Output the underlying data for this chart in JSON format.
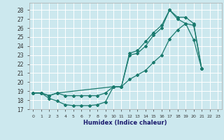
{
  "xlabel": "Humidex (Indice chaleur)",
  "bg_color": "#cce8ee",
  "line_color": "#1a7a6e",
  "grid_color": "#ffffff",
  "xlim": [
    -0.5,
    23.5
  ],
  "ylim": [
    17.0,
    28.8
  ],
  "yticks": [
    17,
    18,
    19,
    20,
    21,
    22,
    23,
    24,
    25,
    26,
    27,
    28
  ],
  "xticks": [
    0,
    1,
    2,
    3,
    4,
    5,
    6,
    7,
    8,
    9,
    10,
    11,
    12,
    13,
    14,
    15,
    16,
    17,
    18,
    19,
    20,
    21,
    22,
    23
  ],
  "line1_x": [
    0,
    1,
    2,
    3,
    10,
    11,
    12,
    13,
    14,
    15,
    16,
    17,
    18,
    19,
    20,
    21
  ],
  "line1_y": [
    18.8,
    18.8,
    18.5,
    18.8,
    19.5,
    19.5,
    23.2,
    23.5,
    24.5,
    25.5,
    26.3,
    28.0,
    27.2,
    27.2,
    26.5,
    21.5
  ],
  "line2_x": [
    0,
    1,
    2,
    3,
    4,
    5,
    6,
    7,
    8,
    9,
    10,
    11,
    12,
    13,
    14,
    15,
    16,
    17,
    18,
    19,
    20,
    21
  ],
  "line2_y": [
    18.8,
    18.8,
    18.2,
    17.9,
    17.5,
    17.4,
    17.4,
    17.4,
    17.5,
    17.8,
    19.5,
    19.5,
    23.0,
    23.2,
    24.0,
    25.2,
    26.0,
    28.0,
    27.0,
    26.5,
    24.7,
    21.5
  ],
  "line3_x": [
    0,
    1,
    2,
    3,
    4,
    5,
    6,
    7,
    8,
    9,
    10,
    11,
    12,
    13,
    14,
    15,
    16,
    17,
    18,
    19,
    20,
    21
  ],
  "line3_y": [
    18.8,
    18.8,
    18.5,
    18.8,
    18.5,
    18.5,
    18.5,
    18.5,
    18.5,
    18.8,
    19.5,
    19.5,
    20.3,
    20.8,
    21.3,
    22.2,
    23.0,
    24.8,
    25.8,
    26.5,
    26.3,
    21.5
  ]
}
